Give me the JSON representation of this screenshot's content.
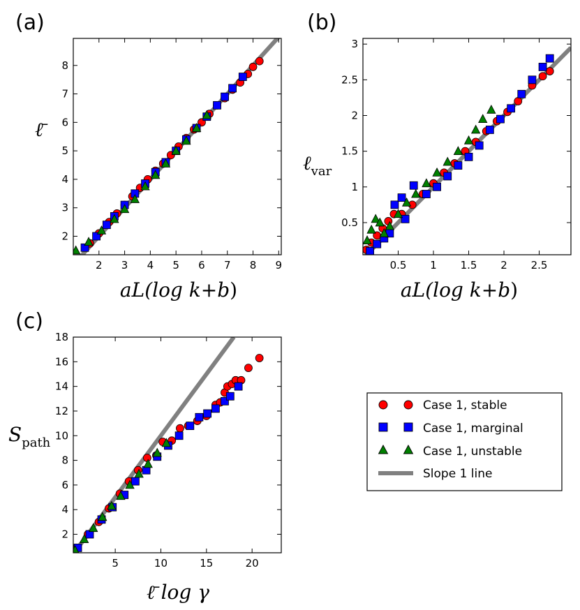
{
  "chart_data": [
    {
      "panel": "(a)",
      "type": "scatter",
      "xlabel_parts": [
        "aL(log ",
        "k",
        "+",
        "b",
        ")"
      ],
      "ylabel_parts": [
        "ℓ̄"
      ],
      "xlim": [
        1.0,
        9.1
      ],
      "ylim": [
        1.35,
        8.95
      ],
      "xticks": [
        2,
        3,
        4,
        5,
        6,
        7,
        8,
        9
      ],
      "yticks": [
        2,
        3,
        4,
        5,
        6,
        7,
        8
      ],
      "reference_line": {
        "name": "Slope 1 line",
        "x": [
          1.0,
          9.1
        ],
        "y": [
          1.0,
          9.1
        ]
      },
      "series": [
        {
          "name": "Case 1, stable",
          "marker": "circle",
          "color": "#ff0000",
          "x": [
            1.65,
            2.0,
            2.4,
            2.7,
            3.0,
            3.3,
            3.6,
            3.9,
            4.2,
            4.5,
            4.8,
            5.1,
            5.4,
            5.7,
            6.0,
            6.3,
            6.6,
            6.9,
            7.2,
            7.5,
            7.8,
            8.0,
            8.25
          ],
          "y": [
            1.75,
            2.1,
            2.5,
            2.8,
            3.1,
            3.4,
            3.7,
            4.0,
            4.3,
            4.55,
            4.85,
            5.15,
            5.45,
            5.75,
            6.0,
            6.3,
            6.6,
            6.85,
            7.15,
            7.4,
            7.7,
            7.95,
            8.15
          ]
        },
        {
          "name": "Case 1, marginal",
          "marker": "square",
          "color": "#0000ff",
          "x": [
            1.45,
            1.9,
            2.3,
            2.6,
            3.0,
            3.4,
            3.8,
            4.2,
            4.6,
            5.0,
            5.4,
            5.8,
            6.2,
            6.6,
            6.9,
            7.2,
            7.6
          ],
          "y": [
            1.6,
            2.0,
            2.4,
            2.7,
            3.1,
            3.5,
            3.85,
            4.25,
            4.6,
            5.0,
            5.4,
            5.8,
            6.2,
            6.6,
            6.9,
            7.2,
            7.6
          ]
        },
        {
          "name": "Case 1, unstable",
          "marker": "triangle",
          "color": "#008000",
          "x": [
            1.1,
            1.6,
            2.1,
            2.6,
            3.0,
            3.4,
            3.8,
            4.2,
            4.6,
            5.0,
            5.4,
            5.8,
            6.2
          ],
          "y": [
            1.5,
            1.8,
            2.2,
            2.6,
            2.95,
            3.3,
            3.75,
            4.15,
            4.55,
            5.0,
            5.35,
            5.8,
            6.25
          ]
        }
      ]
    },
    {
      "panel": "(b)",
      "type": "scatter",
      "xlabel_parts": [
        "aL(log ",
        "k",
        "+",
        "b",
        ")"
      ],
      "ylabel_parts": [
        "ℓ",
        "var"
      ],
      "xlim": [
        0.0,
        2.95
      ],
      "ylim": [
        0.05,
        3.08
      ],
      "xticks": [
        0.5,
        1.0,
        1.5,
        2.0,
        2.5
      ],
      "yticks": [
        0.5,
        1.0,
        1.5,
        2.0,
        2.5,
        3.0
      ],
      "reference_line": {
        "name": "Slope 1 line",
        "x": [
          0.0,
          2.95
        ],
        "y": [
          0.0,
          2.95
        ]
      },
      "series": [
        {
          "name": "Case 1, stable",
          "marker": "circle",
          "color": "#ff0000",
          "x": [
            0.05,
            0.12,
            0.2,
            0.28,
            0.36,
            0.44,
            0.55,
            0.7,
            0.85,
            1.0,
            1.15,
            1.3,
            1.45,
            1.6,
            1.75,
            1.9,
            2.05,
            2.2,
            2.4,
            2.55,
            2.65
          ],
          "y": [
            0.12,
            0.22,
            0.32,
            0.42,
            0.52,
            0.62,
            0.62,
            0.75,
            0.9,
            1.05,
            1.2,
            1.33,
            1.5,
            1.63,
            1.78,
            1.92,
            2.05,
            2.2,
            2.42,
            2.55,
            2.62
          ]
        },
        {
          "name": "Case 1, marginal",
          "marker": "square",
          "color": "#0000ff",
          "x": [
            0.1,
            0.2,
            0.3,
            0.38,
            0.45,
            0.55,
            0.6,
            0.72,
            0.9,
            1.05,
            1.2,
            1.35,
            1.5,
            1.65,
            1.8,
            1.95,
            2.1,
            2.25,
            2.4,
            2.55,
            2.65
          ],
          "y": [
            0.1,
            0.2,
            0.28,
            0.35,
            0.75,
            0.85,
            0.55,
            1.02,
            0.9,
            1.0,
            1.15,
            1.3,
            1.42,
            1.58,
            1.8,
            1.95,
            2.1,
            2.3,
            2.5,
            2.68,
            2.8
          ]
        },
        {
          "name": "Case 1, unstable",
          "marker": "triangle",
          "color": "#008000",
          "x": [
            0.06,
            0.12,
            0.18,
            0.24,
            0.3,
            0.38,
            0.5,
            0.62,
            0.75,
            0.9,
            1.05,
            1.2,
            1.35,
            1.5,
            1.6,
            1.7,
            1.82
          ],
          "y": [
            0.25,
            0.4,
            0.55,
            0.5,
            0.35,
            0.45,
            0.62,
            0.78,
            0.9,
            1.05,
            1.2,
            1.35,
            1.5,
            1.65,
            1.8,
            1.95,
            2.08
          ]
        }
      ]
    },
    {
      "panel": "(c)",
      "type": "scatter",
      "xlabel_parts": [
        "ℓ̄ log ",
        "γ"
      ],
      "ylabel_parts": [
        "S",
        "path"
      ],
      "xlim": [
        0.4,
        23.2
      ],
      "ylim": [
        0.5,
        18.0
      ],
      "xticks": [
        5,
        10,
        15,
        20
      ],
      "yticks": [
        2,
        4,
        6,
        8,
        10,
        12,
        14,
        16,
        18
      ],
      "reference_line": {
        "name": "Slope 1 line",
        "x": [
          0.5,
          18.0
        ],
        "y": [
          0.5,
          18.0
        ]
      },
      "series": [
        {
          "name": "Case 1, stable",
          "marker": "circle",
          "color": "#ff0000",
          "x": [
            0.8,
            2.0,
            3.2,
            4.3,
            5.5,
            6.5,
            7.5,
            8.5,
            9.5,
            10.2,
            11.2,
            12.1,
            13.0,
            14.0,
            15.0,
            16.0,
            16.5,
            17.0,
            17.3,
            17.8,
            18.2,
            18.8,
            19.6,
            20.8
          ],
          "y": [
            0.9,
            2.0,
            3.0,
            4.1,
            5.3,
            6.3,
            7.2,
            8.2,
            8.4,
            9.5,
            9.6,
            10.6,
            10.8,
            11.2,
            11.6,
            12.5,
            12.7,
            13.5,
            14.0,
            14.2,
            14.5,
            14.5,
            15.5,
            16.3
          ]
        },
        {
          "name": "Case 1, marginal",
          "marker": "square",
          "color": "#0000ff",
          "x": [
            0.9,
            2.2,
            3.5,
            4.7,
            6.0,
            7.2,
            8.4,
            9.6,
            10.8,
            12.0,
            13.2,
            14.2,
            15.1,
            16.0,
            17.0,
            17.6,
            18.5
          ],
          "y": [
            0.9,
            2.0,
            3.2,
            4.2,
            5.2,
            6.3,
            7.2,
            8.3,
            9.2,
            10.0,
            10.8,
            11.5,
            11.8,
            12.2,
            12.8,
            13.2,
            14.0
          ]
        },
        {
          "name": "Case 1, unstable",
          "marker": "triangle",
          "color": "#008000",
          "x": [
            0.6,
            1.6,
            2.6,
            3.6,
            4.6,
            5.6,
            6.6,
            7.6,
            8.6,
            9.6,
            10.6
          ],
          "y": [
            0.7,
            1.6,
            2.5,
            3.4,
            4.3,
            5.1,
            6.0,
            6.9,
            7.7,
            8.6,
            9.4
          ]
        }
      ]
    }
  ],
  "legend": {
    "placement": "right of panel (c)",
    "entries": [
      {
        "label": "Case 1, stable",
        "marker": "circle",
        "color": "#ff0000"
      },
      {
        "label": "Case 1, marginal",
        "marker": "square",
        "color": "#0000ff"
      },
      {
        "label": "Case 1, unstable",
        "marker": "triangle",
        "color": "#008000"
      },
      {
        "label": "Slope 1 line",
        "marker": "line",
        "color": "#808080"
      }
    ]
  }
}
